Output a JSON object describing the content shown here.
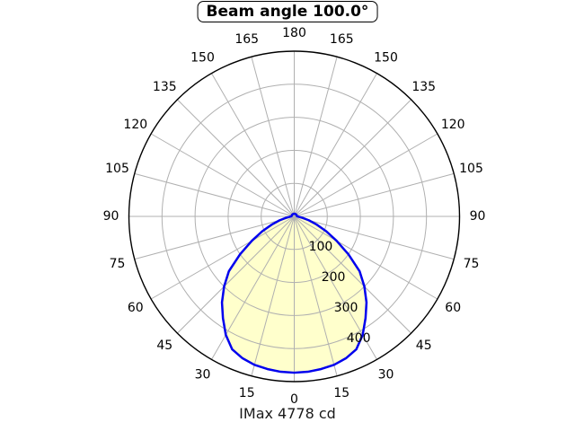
{
  "title": "Beam angle 100.0°",
  "footer": "IMax 4778 cd",
  "chart_data": {
    "type": "polar",
    "title": "Beam angle 100.0°",
    "footer_label": "IMax 4778 cd",
    "imax_cd": 4778,
    "beam_angle_deg": 100.0,
    "r_max": 500,
    "r_ticks": [
      {
        "value": 100,
        "label": "100"
      },
      {
        "value": 200,
        "label": "200"
      },
      {
        "value": 300,
        "label": "300"
      },
      {
        "value": 400,
        "label": "400"
      }
    ],
    "r_label_angle_deg": 22.5,
    "theta_ticks": [
      {
        "angle_deg": 0,
        "label": "0"
      },
      {
        "angle_deg": 15,
        "label": "15"
      },
      {
        "angle_deg": -15,
        "label": "15"
      },
      {
        "angle_deg": 30,
        "label": "30"
      },
      {
        "angle_deg": -30,
        "label": "30"
      },
      {
        "angle_deg": 45,
        "label": "45"
      },
      {
        "angle_deg": -45,
        "label": "45"
      },
      {
        "angle_deg": 60,
        "label": "60"
      },
      {
        "angle_deg": -60,
        "label": "60"
      },
      {
        "angle_deg": 75,
        "label": "75"
      },
      {
        "angle_deg": -75,
        "label": "75"
      },
      {
        "angle_deg": 90,
        "label": "90"
      },
      {
        "angle_deg": -90,
        "label": "90"
      },
      {
        "angle_deg": 105,
        "label": "105"
      },
      {
        "angle_deg": -105,
        "label": "105"
      },
      {
        "angle_deg": 120,
        "label": "120"
      },
      {
        "angle_deg": -120,
        "label": "120"
      },
      {
        "angle_deg": 135,
        "label": "135"
      },
      {
        "angle_deg": -135,
        "label": "135"
      },
      {
        "angle_deg": 150,
        "label": "150"
      },
      {
        "angle_deg": -150,
        "label": "150"
      },
      {
        "angle_deg": 165,
        "label": "165"
      },
      {
        "angle_deg": -165,
        "label": "165"
      },
      {
        "angle_deg": 180,
        "label": "180"
      }
    ],
    "spoke_step_deg": 15,
    "profile": {
      "symmetric": true,
      "angles_deg": [
        0,
        5,
        10,
        15,
        20,
        25,
        30,
        35,
        40,
        45,
        50,
        55,
        60,
        65,
        70,
        75,
        80,
        85,
        90,
        95,
        100,
        105,
        110,
        115,
        120,
        125,
        130,
        135,
        140,
        145,
        150,
        155,
        160,
        165,
        170,
        175,
        180
      ],
      "values": [
        473,
        472,
        469,
        465,
        457,
        444,
        414,
        376,
        340,
        300,
        258,
        200,
        148,
        107,
        72,
        46,
        26,
        14,
        10,
        8,
        8,
        8,
        8,
        8,
        8,
        8,
        8,
        8,
        8,
        8,
        8,
        8,
        8,
        8,
        8,
        8,
        8
      ]
    },
    "colors": {
      "curve": "#0000ee",
      "fill": "#ffffcc",
      "grid": "#b0b0b0",
      "outline": "#000000",
      "text": "#000000"
    },
    "legend": null,
    "grid": true
  }
}
